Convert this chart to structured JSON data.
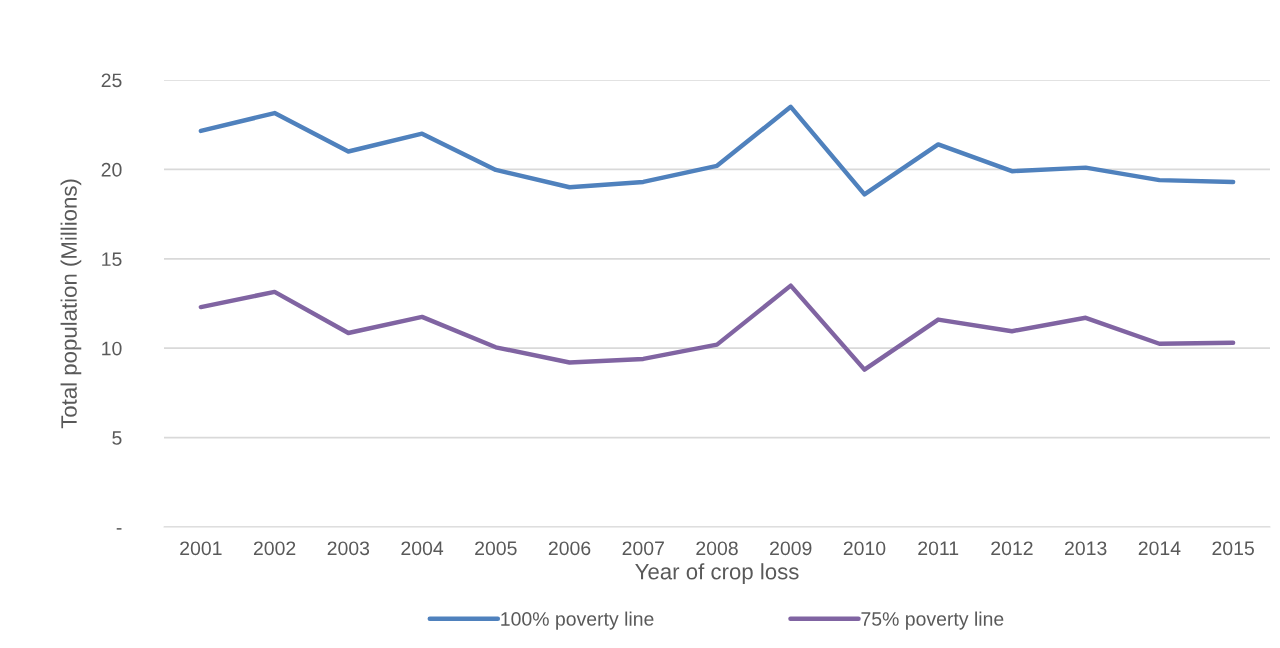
{
  "chart_data": {
    "type": "line",
    "xlabel": "Year of crop loss",
    "ylabel": "Total population (Millions)",
    "categories": [
      "2001",
      "2002",
      "2003",
      "2004",
      "2005",
      "2006",
      "2007",
      "2008",
      "2009",
      "2010",
      "2011",
      "2012",
      "2013",
      "2014",
      "2015"
    ],
    "series": [
      {
        "name": "100% poverty line",
        "color": "#4f81bd",
        "values": [
          22.15,
          23.15,
          21.0,
          22.0,
          19.97,
          19.0,
          19.3,
          20.2,
          23.5,
          18.6,
          21.4,
          19.9,
          20.1,
          19.4,
          19.3
        ]
      },
      {
        "name": "75% poverty line",
        "color": "#8064a2",
        "values": [
          12.3,
          13.15,
          10.85,
          11.75,
          10.05,
          9.2,
          9.4,
          10.2,
          13.5,
          8.8,
          11.6,
          10.95,
          11.7,
          10.25,
          10.3
        ]
      }
    ],
    "ylim": [
      0,
      25
    ],
    "yticks": [
      {
        "value": 0,
        "label": "-"
      },
      5,
      10,
      15,
      20,
      25
    ],
    "grid": "y",
    "legend": "bottom",
    "marker": "none",
    "line_style": "solid"
  }
}
